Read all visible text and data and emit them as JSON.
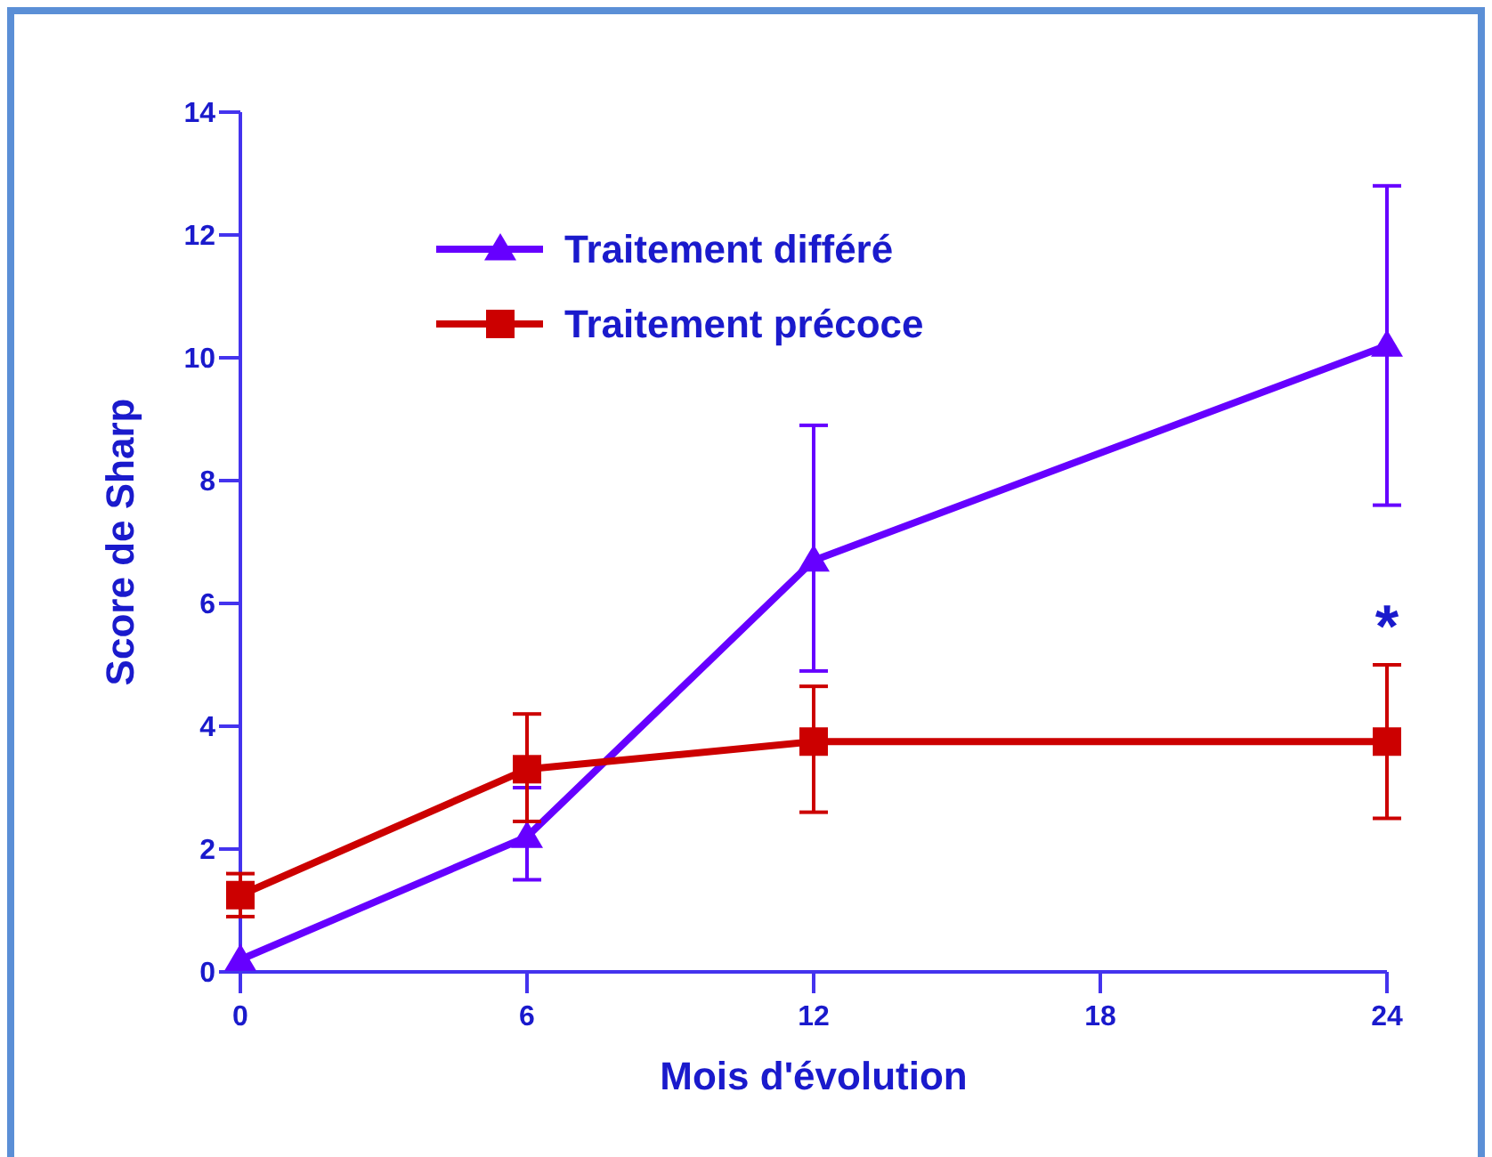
{
  "chart_data": {
    "type": "line",
    "xlabel": "Mois d'évolution",
    "ylabel": "Score de Sharp",
    "x": [
      0,
      6,
      12,
      24
    ],
    "xlim": [
      0,
      24
    ],
    "xticks": [
      0,
      6,
      12,
      18,
      24
    ],
    "ylim": [
      0,
      14
    ],
    "yticks": [
      0,
      2,
      4,
      6,
      8,
      10,
      12,
      14
    ],
    "series": [
      {
        "name": "Traitement différé",
        "color": "#6600ff",
        "marker": "triangle",
        "values": [
          0.2,
          2.2,
          6.7,
          10.2
        ],
        "errors": [
          null,
          [
            1.5,
            3
          ],
          [
            4.9,
            8.9
          ],
          [
            7.6,
            12.8
          ]
        ]
      },
      {
        "name": "Traitement précoce",
        "color": "#cc0000",
        "marker": "square",
        "values": [
          1.25,
          3.3,
          3.75,
          3.75
        ],
        "errors": [
          [
            0.9,
            1.6
          ],
          [
            2.45,
            4.2
          ],
          [
            2.6,
            4.65
          ],
          [
            2.5,
            5
          ]
        ]
      }
    ],
    "annotations": [
      "*"
    ],
    "legend": "top left",
    "grid": false
  }
}
